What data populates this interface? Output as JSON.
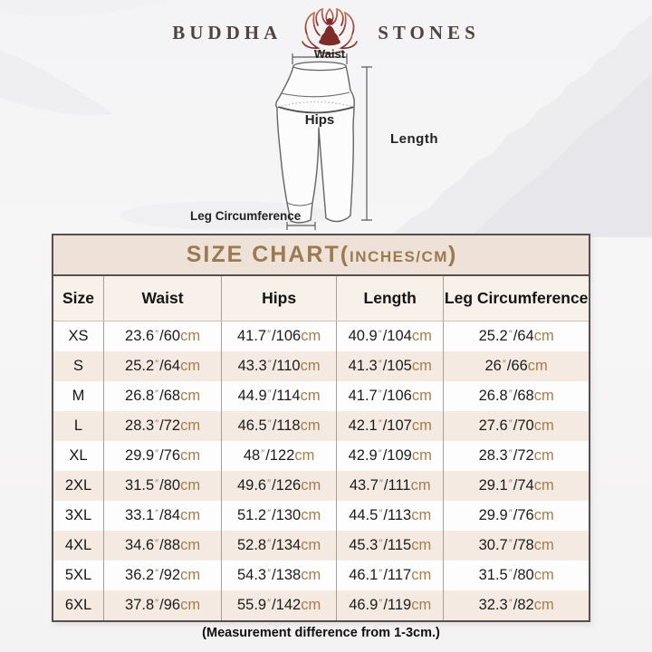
{
  "brand": {
    "left": "BUDDHA",
    "right": "STONES",
    "icon": "lotus-meditation-icon"
  },
  "diagram": {
    "labels": {
      "waist": "Waist",
      "hips": "Hips",
      "length": "Length",
      "leg_circumference": "Leg Circumference"
    }
  },
  "size_chart": {
    "title_main": "SIZE CHART(",
    "title_unit": "INCHES/CM",
    "title_close": ")",
    "headers": [
      "Size",
      "Waist",
      "Hips",
      "Length",
      "Leg Circumference"
    ],
    "inch_mark": "″",
    "slash": "/",
    "cm_label": "cm",
    "rows": [
      {
        "size": "XS",
        "waist": {
          "in": "23.6",
          "cm": "60"
        },
        "hips": {
          "in": "41.7",
          "cm": "106"
        },
        "length": {
          "in": "40.9",
          "cm": "104"
        },
        "leg": {
          "in": "25.2",
          "cm": "64"
        }
      },
      {
        "size": "S",
        "waist": {
          "in": "25.2",
          "cm": "64"
        },
        "hips": {
          "in": "43.3",
          "cm": "110"
        },
        "length": {
          "in": "41.3",
          "cm": "105"
        },
        "leg": {
          "in": "26",
          "cm": "66"
        }
      },
      {
        "size": "M",
        "waist": {
          "in": "26.8",
          "cm": "68"
        },
        "hips": {
          "in": "44.9",
          "cm": "114"
        },
        "length": {
          "in": "41.7",
          "cm": "106"
        },
        "leg": {
          "in": "26.8",
          "cm": "68"
        }
      },
      {
        "size": "L",
        "waist": {
          "in": "28.3",
          "cm": "72"
        },
        "hips": {
          "in": "46.5",
          "cm": "118"
        },
        "length": {
          "in": "42.1",
          "cm": "107"
        },
        "leg": {
          "in": "27.6",
          "cm": "70"
        }
      },
      {
        "size": "XL",
        "waist": {
          "in": "29.9",
          "cm": "76"
        },
        "hips": {
          "in": "48",
          "cm": "122"
        },
        "length": {
          "in": "42.9",
          "cm": "109"
        },
        "leg": {
          "in": "28.3",
          "cm": "72"
        }
      },
      {
        "size": "2XL",
        "waist": {
          "in": "31.5",
          "cm": "80"
        },
        "hips": {
          "in": "49.6",
          "cm": "126"
        },
        "length": {
          "in": "43.7",
          "cm": "111"
        },
        "leg": {
          "in": "29.1",
          "cm": "74"
        }
      },
      {
        "size": "3XL",
        "waist": {
          "in": "33.1",
          "cm": "84"
        },
        "hips": {
          "in": "51.2",
          "cm": "130"
        },
        "length": {
          "in": "44.5",
          "cm": "113"
        },
        "leg": {
          "in": "29.9",
          "cm": "76"
        }
      },
      {
        "size": "4XL",
        "waist": {
          "in": "34.6",
          "cm": "88"
        },
        "hips": {
          "in": "52.8",
          "cm": "134"
        },
        "length": {
          "in": "45.3",
          "cm": "115"
        },
        "leg": {
          "in": "30.7",
          "cm": "78"
        }
      },
      {
        "size": "5XL",
        "waist": {
          "in": "36.2",
          "cm": "92"
        },
        "hips": {
          "in": "54.3",
          "cm": "138"
        },
        "length": {
          "in": "46.1",
          "cm": "117"
        },
        "leg": {
          "in": "31.5",
          "cm": "80"
        }
      },
      {
        "size": "6XL",
        "waist": {
          "in": "37.8",
          "cm": "96"
        },
        "hips": {
          "in": "55.9",
          "cm": "142"
        },
        "length": {
          "in": "46.9",
          "cm": "119"
        },
        "leg": {
          "in": "32.3",
          "cm": "82"
        }
      }
    ]
  },
  "footer_note": "(Measurement difference from 1-3cm.)",
  "colors": {
    "accent_gold": "#9b7a4f",
    "cm_tan": "#a57d4b",
    "band_background": "#eee2d8",
    "row_stripe": "#f4eae2",
    "border_dark": "#55504d",
    "logo_red_dark": "#7d2c26",
    "logo_red_light": "#c96f51"
  }
}
